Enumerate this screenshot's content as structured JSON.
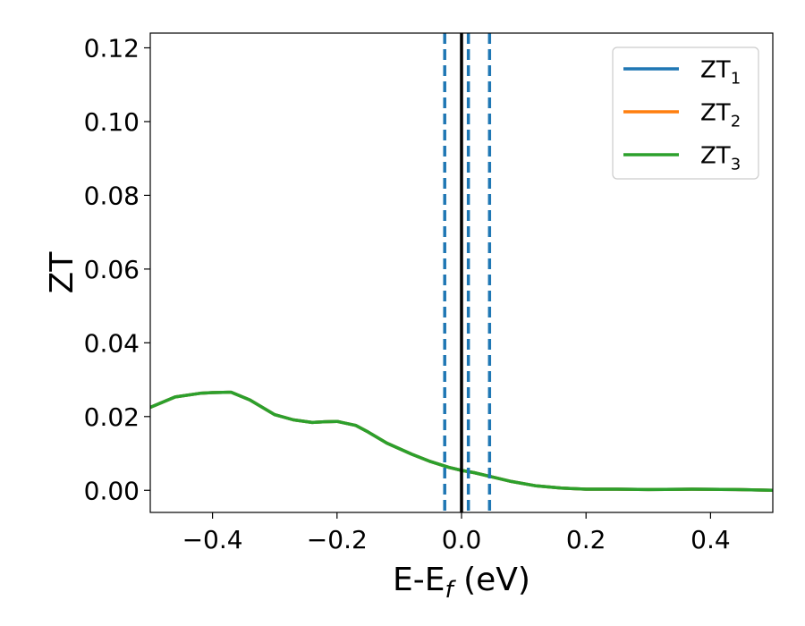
{
  "chart_data": {
    "type": "line",
    "title": "",
    "xlabel": {
      "main": "E-E",
      "sub": "f",
      "suffix": " (eV)"
    },
    "ylabel": "ZT",
    "xlim": [
      -0.5,
      0.5
    ],
    "ylim": [
      -0.006,
      0.124
    ],
    "xticks": [
      -0.4,
      -0.2,
      0.0,
      0.2,
      0.4
    ],
    "xtick_labels": [
      "−0.4",
      "−0.2",
      "0.0",
      "0.2",
      "0.4"
    ],
    "yticks": [
      0.0,
      0.02,
      0.04,
      0.06,
      0.08,
      0.1,
      0.12
    ],
    "ytick_labels": [
      "0.00",
      "0.02",
      "0.04",
      "0.06",
      "0.08",
      "0.10",
      "0.12"
    ],
    "grid": false,
    "legend_position": "top-right",
    "series": [
      {
        "name": "ZT",
        "sub": "1",
        "color": "#1f77b4",
        "x": [
          -0.5,
          -0.46,
          -0.42,
          -0.4,
          -0.37,
          -0.34,
          -0.3,
          -0.27,
          -0.24,
          -0.22,
          -0.2,
          -0.17,
          -0.15,
          -0.12,
          -0.08,
          -0.05,
          -0.02,
          0.0,
          0.02,
          0.05,
          0.08,
          0.12,
          0.16,
          0.2,
          0.25,
          0.3,
          0.37,
          0.44,
          0.5
        ],
        "y": [
          0.0225,
          0.0253,
          0.0263,
          0.0265,
          0.0266,
          0.0245,
          0.0205,
          0.0191,
          0.0184,
          0.0186,
          0.0187,
          0.0176,
          0.0158,
          0.0128,
          0.0098,
          0.0078,
          0.0062,
          0.0054,
          0.0048,
          0.0036,
          0.0024,
          0.0012,
          0.0006,
          0.0003,
          0.0003,
          0.0002,
          0.0003,
          0.0002,
          0.0
        ]
      },
      {
        "name": "ZT",
        "sub": "2",
        "color": "#ff7f0e",
        "x": [
          -0.5,
          -0.46,
          -0.42,
          -0.4,
          -0.37,
          -0.34,
          -0.3,
          -0.27,
          -0.24,
          -0.22,
          -0.2,
          -0.17,
          -0.15,
          -0.12,
          -0.08,
          -0.05,
          -0.02,
          0.0,
          0.02,
          0.05,
          0.08,
          0.12,
          0.16,
          0.2,
          0.25,
          0.3,
          0.37,
          0.44,
          0.5
        ],
        "y": [
          0.0225,
          0.0253,
          0.0263,
          0.0265,
          0.0266,
          0.0245,
          0.0205,
          0.0191,
          0.0184,
          0.0186,
          0.0187,
          0.0176,
          0.0158,
          0.0128,
          0.0098,
          0.0078,
          0.0062,
          0.0054,
          0.0048,
          0.0036,
          0.0024,
          0.0012,
          0.0006,
          0.0003,
          0.0003,
          0.0002,
          0.0003,
          0.0002,
          0.0
        ]
      },
      {
        "name": "ZT",
        "sub": "3",
        "color": "#2ca02c",
        "x": [
          -0.5,
          -0.46,
          -0.42,
          -0.4,
          -0.37,
          -0.34,
          -0.3,
          -0.27,
          -0.24,
          -0.22,
          -0.2,
          -0.17,
          -0.15,
          -0.12,
          -0.08,
          -0.05,
          -0.02,
          0.0,
          0.02,
          0.05,
          0.08,
          0.12,
          0.16,
          0.2,
          0.25,
          0.3,
          0.37,
          0.44,
          0.5
        ],
        "y": [
          0.0225,
          0.0253,
          0.0263,
          0.0265,
          0.0266,
          0.0245,
          0.0205,
          0.0191,
          0.0184,
          0.0186,
          0.0187,
          0.0176,
          0.0158,
          0.0128,
          0.0098,
          0.0078,
          0.0062,
          0.0054,
          0.0048,
          0.0036,
          0.0024,
          0.0012,
          0.0006,
          0.0003,
          0.0003,
          0.0002,
          0.0003,
          0.0002,
          0.0
        ]
      }
    ],
    "vlines": [
      {
        "x": -0.027,
        "style": "dashed",
        "color": "#1f77b4"
      },
      {
        "x": 0.0,
        "style": "solid",
        "color": "#000000"
      },
      {
        "x": 0.011,
        "style": "dashed",
        "color": "#1f77b4"
      },
      {
        "x": 0.045,
        "style": "dashed",
        "color": "#1f77b4"
      }
    ]
  }
}
